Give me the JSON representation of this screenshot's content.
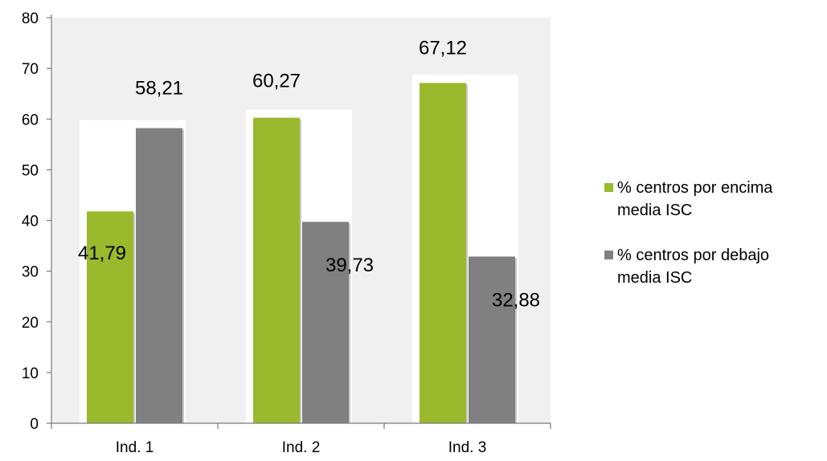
{
  "chart_data": {
    "type": "bar",
    "categories": [
      "Ind. 1",
      "Ind. 2",
      "Ind. 3"
    ],
    "series": [
      {
        "name": "% centros por encima media ISC",
        "name_lines": [
          "% centros por encima",
          "media ISC"
        ],
        "color": "#9ab92d",
        "values": [
          41.79,
          60.27,
          67.12
        ],
        "labels": [
          "41,79",
          "60,27",
          "67,12"
        ]
      },
      {
        "name": "% centros por debajo media ISC",
        "name_lines": [
          "% centros por debajo",
          "media ISC"
        ],
        "color": "#808080",
        "values": [
          58.21,
          39.73,
          32.88
        ],
        "labels": [
          "58,21",
          "39,73",
          "32,88"
        ]
      }
    ],
    "ylim": [
      0,
      80
    ],
    "yticks": [
      0,
      10,
      20,
      30,
      40,
      50,
      60,
      70,
      80
    ],
    "title": "",
    "xlabel": "",
    "ylabel": "",
    "grid": false,
    "legend": "right",
    "plot_background": "#f0f0f0"
  }
}
